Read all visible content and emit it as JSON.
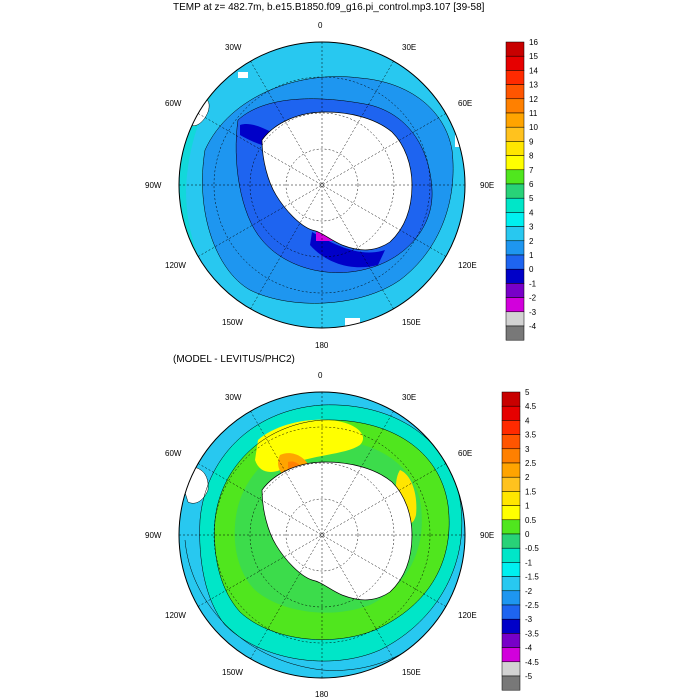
{
  "panel1": {
    "title": "TEMP at z= 482.7m, b.e15.B1850.f09_g16.pi_control.mp3.107 [39-58]",
    "lon_labels": [
      "0",
      "30E",
      "60E",
      "90E",
      "120E",
      "150E",
      "180",
      "150W",
      "120W",
      "90W",
      "60W",
      "30W"
    ],
    "colorbar": {
      "labels": [
        "16",
        "15",
        "14",
        "13",
        "12",
        "11",
        "10",
        "9",
        "8",
        "7",
        "6",
        "5",
        "4",
        "3",
        "2",
        "1",
        "0",
        "-1",
        "-2",
        "-3",
        "-4"
      ],
      "colors": [
        "#c80000",
        "#e60000",
        "#ff2a00",
        "#ff5500",
        "#ff8000",
        "#ffa400",
        "#ffc21e",
        "#ffe600",
        "#ffff00",
        "#50e61e",
        "#28d278",
        "#00e6c8",
        "#00f0f0",
        "#28c8f0",
        "#1e96f0",
        "#1e64f0",
        "#0000c8",
        "#7800c8",
        "#d200dc",
        "#d2d2d2",
        "#787878"
      ]
    }
  },
  "panel2": {
    "title": "(MODEL - LEVITUS/PHC2)",
    "lon_labels": [
      "0",
      "30E",
      "60E",
      "90E",
      "120E",
      "150E",
      "180",
      "150W",
      "120W",
      "90W",
      "60W",
      "30W"
    ],
    "colorbar": {
      "labels": [
        "5",
        "4.5",
        "4",
        "3.5",
        "3",
        "2.5",
        "2",
        "1.5",
        "1",
        "0.5",
        "0",
        "-0.5",
        "-1",
        "-1.5",
        "-2",
        "-2.5",
        "-3",
        "-3.5",
        "-4",
        "-4.5",
        "-5"
      ],
      "colors": [
        "#c80000",
        "#e60000",
        "#ff2a00",
        "#ff5500",
        "#ff8000",
        "#ffa400",
        "#ffc21e",
        "#ffe600",
        "#ffff00",
        "#50e61e",
        "#28d278",
        "#00e6c8",
        "#00f0f0",
        "#28c8f0",
        "#1e96f0",
        "#1e64f0",
        "#0000c8",
        "#7800c8",
        "#d200dc",
        "#d2d2d2",
        "#787878"
      ]
    }
  }
}
